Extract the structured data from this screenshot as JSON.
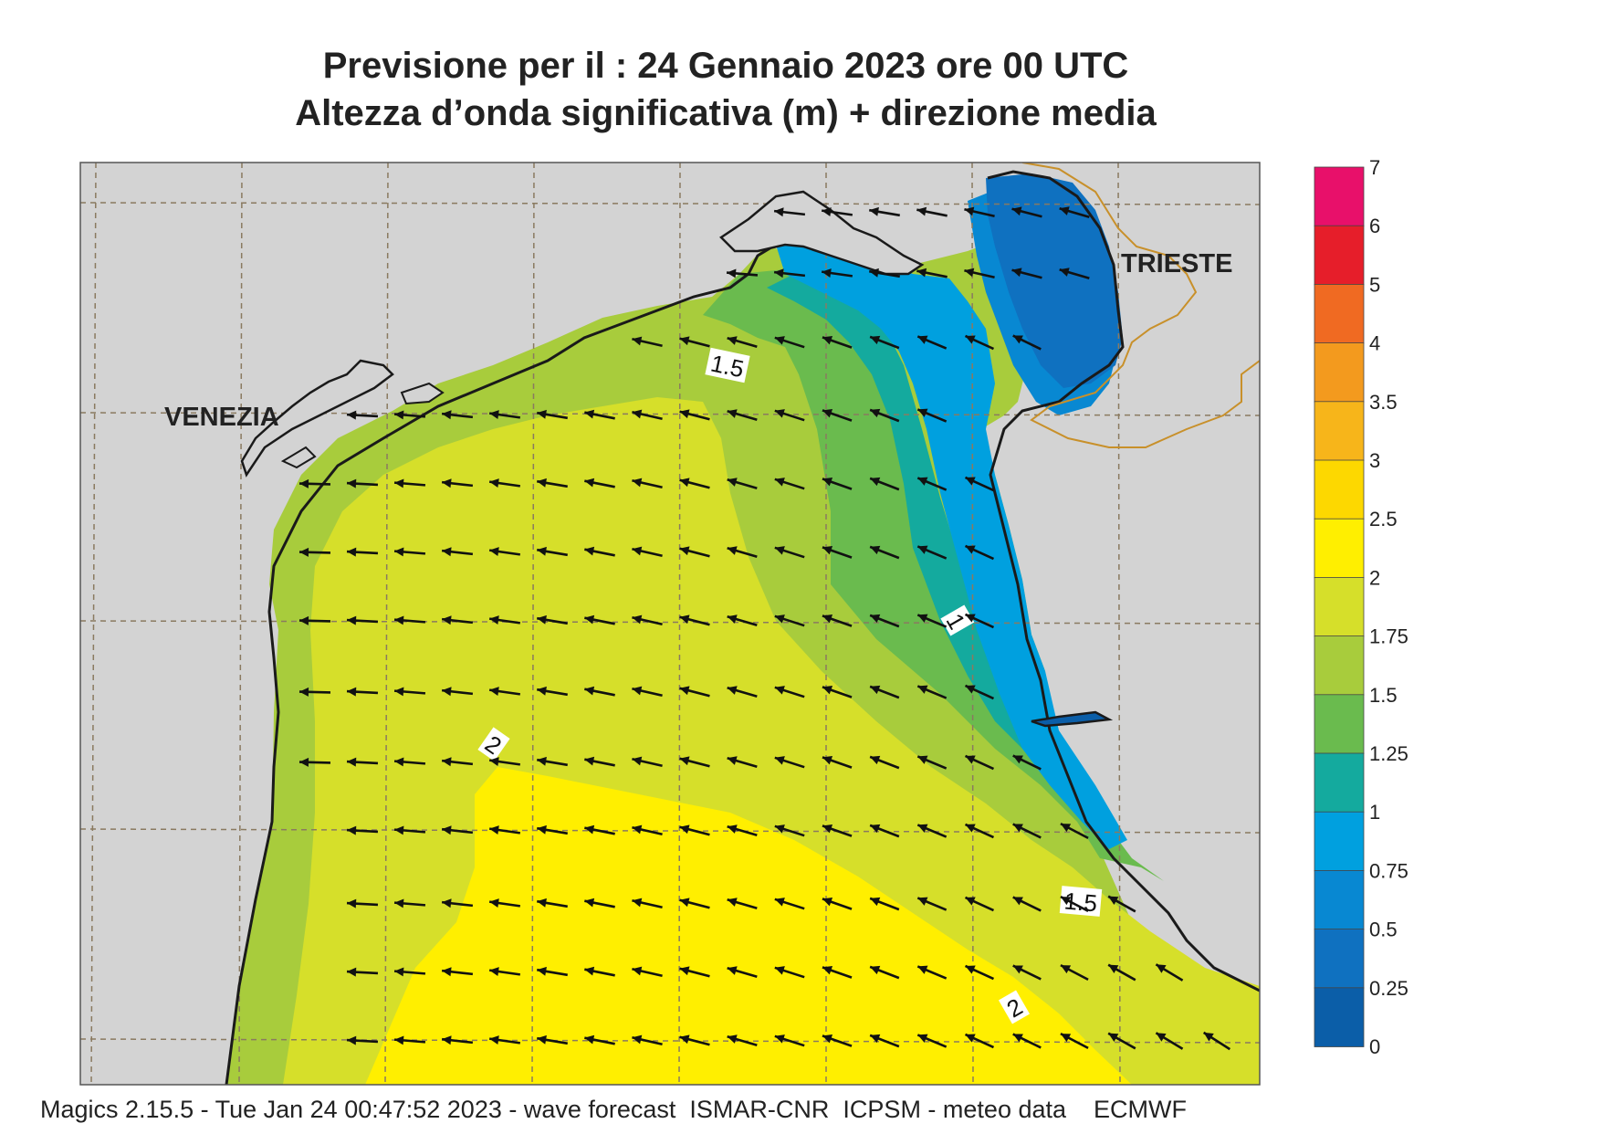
{
  "title": {
    "line1": "Previsione per il  :  24  Gennaio  2023   ore 00 UTC",
    "line2": "Altezza d’onda significativa (m) + direzione media"
  },
  "map": {
    "cities": [
      "VENEZIA",
      "TRIESTE"
    ],
    "contour_labels": [
      "1.5",
      "1",
      "2",
      "1.5",
      "2"
    ],
    "colors": {
      "land": "#d3d3d3",
      "coast": "#1a1a1a",
      "border": "#c8902a",
      "grid": "#8a7a60",
      "arrow": "#111111"
    }
  },
  "colorbar": {
    "labels": [
      "7",
      "6",
      "5",
      "4",
      "3.5",
      "3",
      "2.5",
      "2",
      "1.75",
      "1.5",
      "1.25",
      "1",
      "0.75",
      "0.5",
      "0.25",
      "0"
    ],
    "colors": [
      "#e8106a",
      "#e61e2a",
      "#f06a22",
      "#f39a1e",
      "#f7b51a",
      "#fdd800",
      "#ffef00",
      "#d6df2a",
      "#a8cc3c",
      "#6abb4e",
      "#14aa9e",
      "#00a0df",
      "#0888d2",
      "#0f71c0",
      "#0b5ea8"
    ]
  },
  "footer": "Magics 2.15.5 - Tue Jan 24 00:47:52 2023 - wave forecast  ISMAR-CNR  ICPSM - meteo data    ECMWF"
}
